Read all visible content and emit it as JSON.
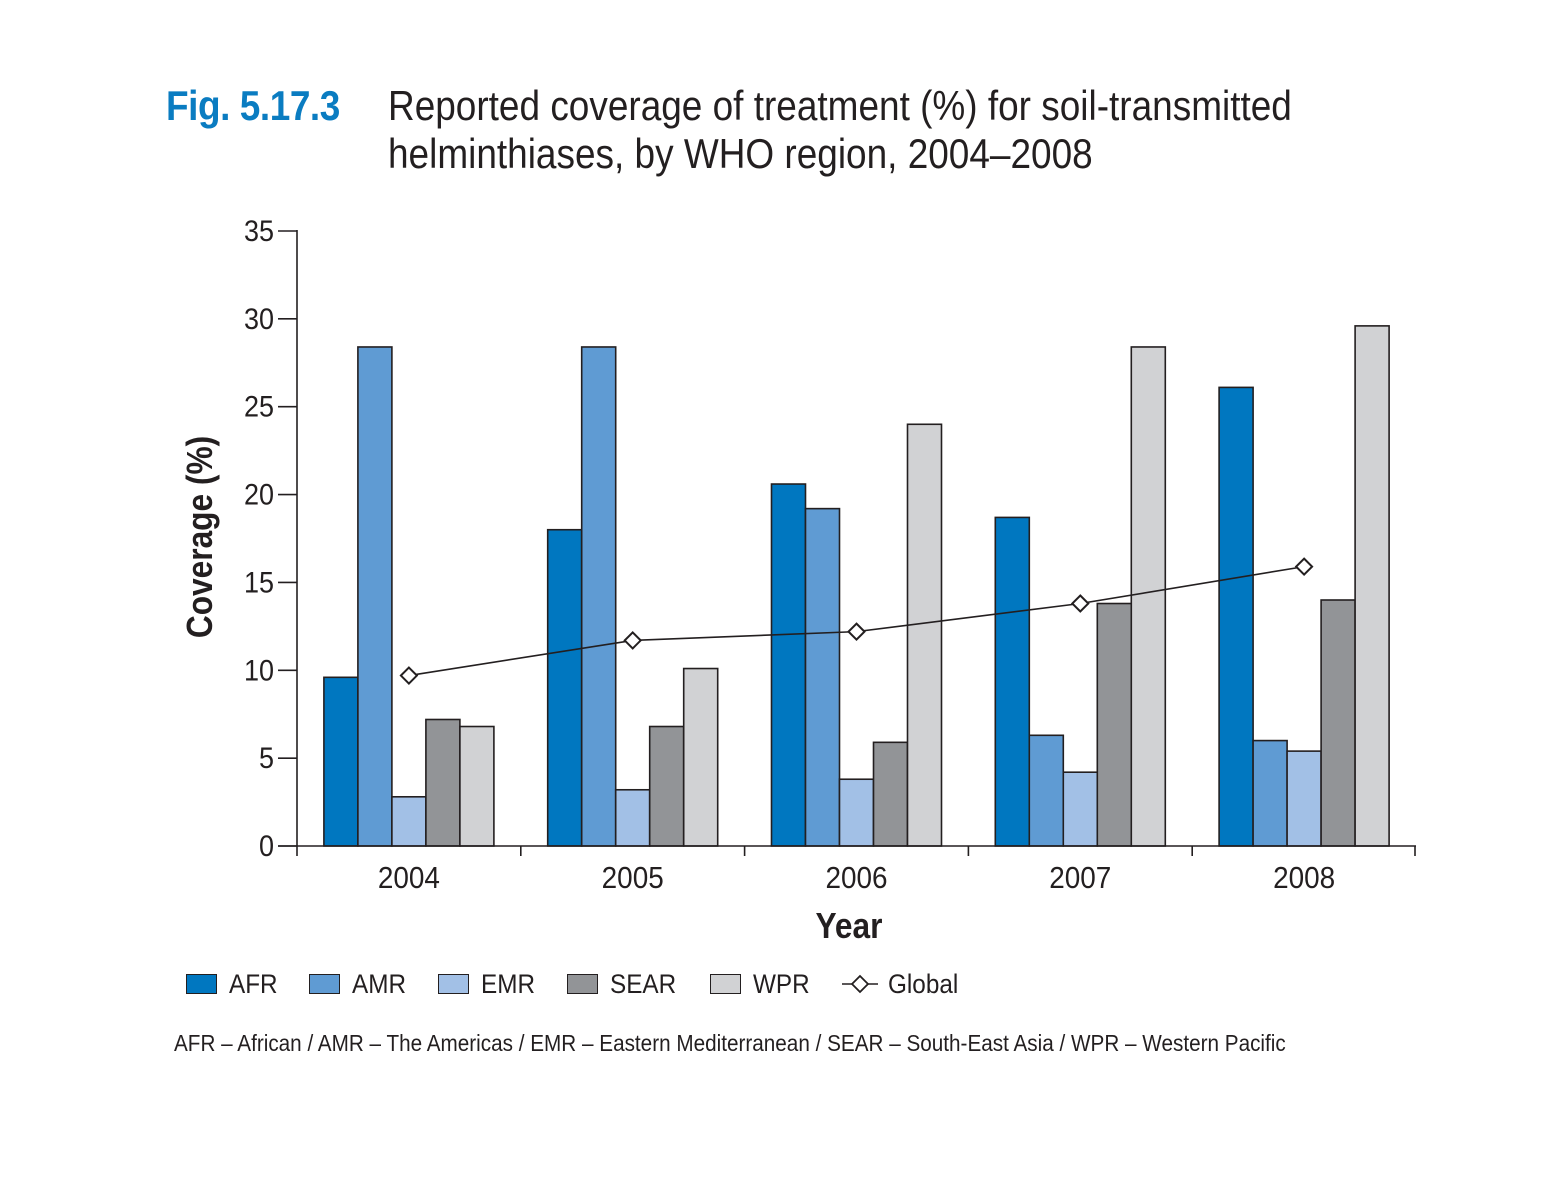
{
  "figure": {
    "label": "Fig. 5.17.3",
    "title_lines": [
      "Reported coverage of treatment (%) for soil-transmitted",
      "helminthiases, by WHO region, 2004–2008"
    ]
  },
  "chart_data": {
    "type": "bar",
    "title": "Reported coverage of treatment (%) for soil-transmitted helminthiases, by WHO region, 2004–2008",
    "xlabel": "Year",
    "ylabel": "Coverage (%)",
    "ylim": [
      0,
      35
    ],
    "yticks": [
      0,
      5,
      10,
      15,
      20,
      25,
      30,
      35
    ],
    "categories": [
      "2004",
      "2005",
      "2006",
      "2007",
      "2008"
    ],
    "series": [
      {
        "name": "AFR",
        "color": "#0077c0",
        "values": [
          9.6,
          18.0,
          20.6,
          18.7,
          26.1
        ]
      },
      {
        "name": "AMR",
        "color": "#5f9bd3",
        "values": [
          28.4,
          28.4,
          19.2,
          6.3,
          6.0
        ]
      },
      {
        "name": "EMR",
        "color": "#a2c0e6",
        "values": [
          2.8,
          3.2,
          3.8,
          4.2,
          5.4
        ]
      },
      {
        "name": "SEAR",
        "color": "#929497",
        "values": [
          7.2,
          6.8,
          5.9,
          13.8,
          14.0
        ]
      },
      {
        "name": "WPR",
        "color": "#d1d2d4",
        "values": [
          6.8,
          10.1,
          24.0,
          28.4,
          29.6
        ]
      }
    ],
    "line_series": {
      "name": "Global",
      "marker": "diamond-open",
      "values": [
        9.7,
        11.7,
        12.2,
        13.8,
        15.9
      ]
    },
    "grid": false,
    "legend_placement": "bottom"
  },
  "legend": {
    "items": [
      {
        "label": "AFR",
        "color": "#0077c0"
      },
      {
        "label": "AMR",
        "color": "#5f9bd3"
      },
      {
        "label": "EMR",
        "color": "#a2c0e6"
      },
      {
        "label": "SEAR",
        "color": "#929497"
      },
      {
        "label": "WPR",
        "color": "#d1d2d4"
      }
    ],
    "global_label": "Global"
  },
  "footnote": "AFR – African / AMR – The Americas / EMR – Eastern Mediterranean / SEAR – South-East Asia / WPR – Western Pacific"
}
